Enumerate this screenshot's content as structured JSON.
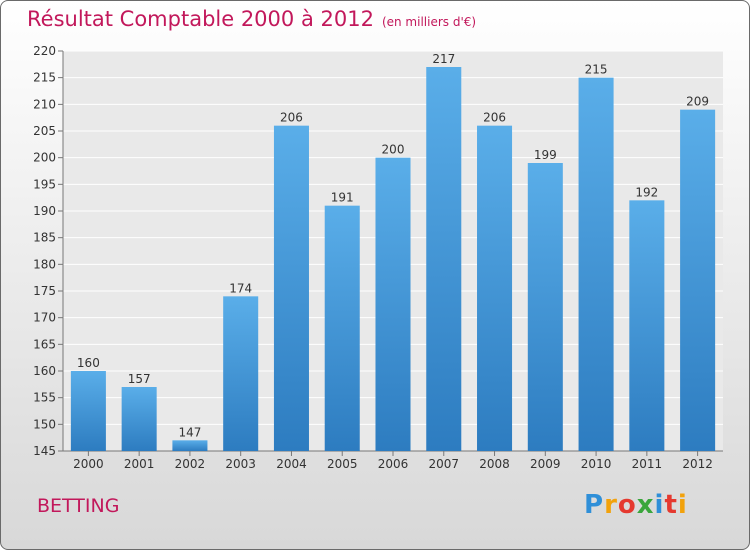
{
  "chart_data": {
    "type": "bar",
    "title": "Résultat Comptable 2000 à 2012",
    "subtitle": "(en milliers d'€)",
    "categories": [
      "2000",
      "2001",
      "2002",
      "2003",
      "2004",
      "2005",
      "2006",
      "2007",
      "2008",
      "2009",
      "2010",
      "2011",
      "2012"
    ],
    "values": [
      160,
      157,
      147,
      174,
      206,
      191,
      200,
      217,
      206,
      199,
      215,
      192,
      209
    ],
    "ylim": [
      145,
      220
    ],
    "ytick_step": 5,
    "grid": true,
    "bar_color": "#4a9ede",
    "title_color": "#c2185b"
  },
  "footer": {
    "commune": "BETTING",
    "logo_text": "Proxiti"
  }
}
